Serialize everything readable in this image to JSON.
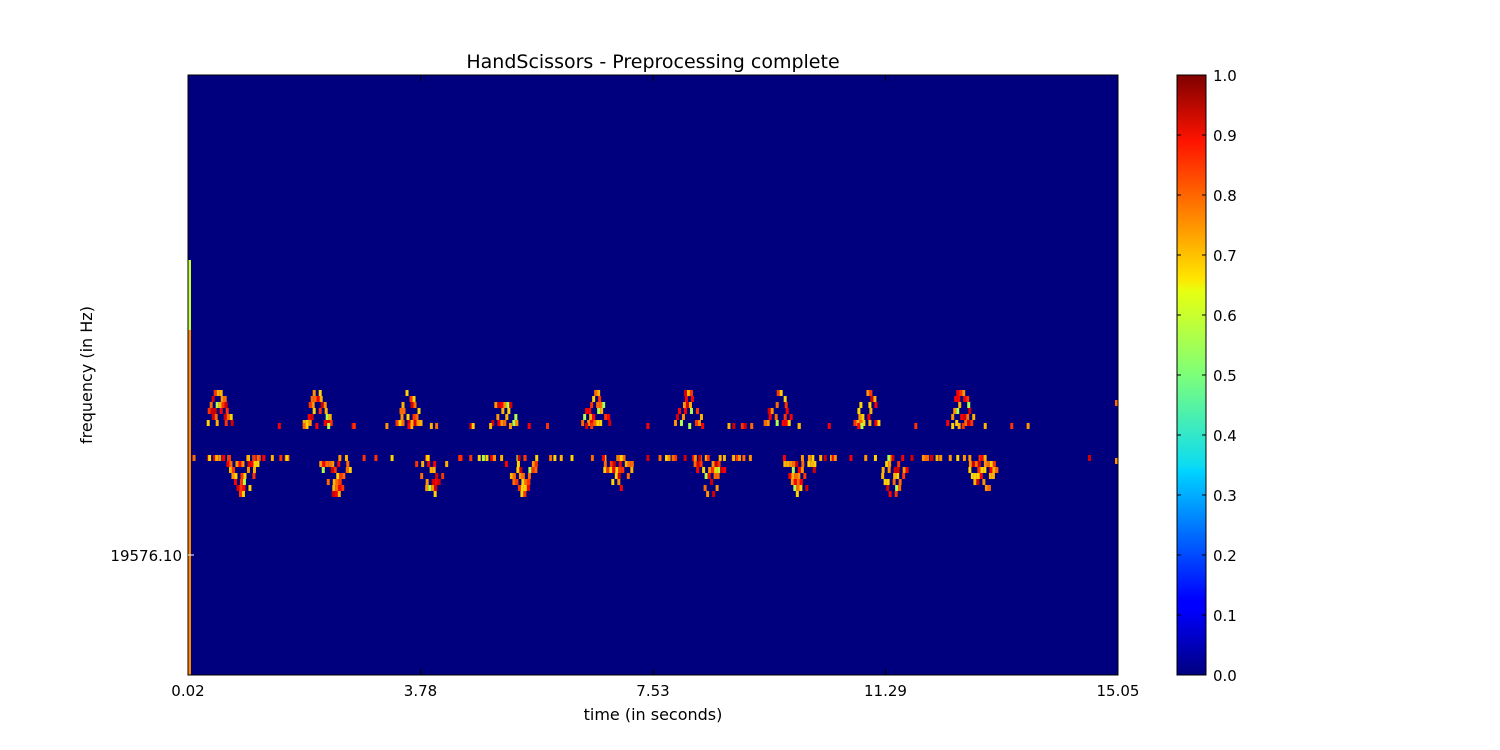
{
  "chart_data": {
    "type": "heatmap",
    "title": "HandScissors - Preprocessing complete",
    "xlabel": "time (in seconds)",
    "ylabel": "frequency (in Hz)",
    "x_ticks": [
      "0.02",
      "3.78",
      "7.53",
      "11.29",
      "15.05"
    ],
    "x_range": [
      0.02,
      15.05
    ],
    "y_ticks": [
      "19576.10"
    ],
    "y_tick_value": 19576.1,
    "colorbar": {
      "colormap": "jet",
      "range": [
        0.0,
        1.0
      ],
      "ticks": [
        "0.0",
        "0.1",
        "0.2",
        "0.3",
        "0.4",
        "0.5",
        "0.6",
        "0.7",
        "0.8",
        "0.9",
        "1.0"
      ]
    },
    "background_value": 0.0,
    "description_note": "",
    "bursts_upper_band_times": [
      0.5,
      2.1,
      3.6,
      5.1,
      6.6,
      8.1,
      9.55,
      11.0,
      12.5
    ],
    "bursts_lower_band_times": [
      0.9,
      2.4,
      3.95,
      5.4,
      6.95,
      8.45,
      9.9,
      11.4,
      12.85
    ],
    "colors": {
      "background": "#00007f",
      "frame": "#000000"
    }
  }
}
